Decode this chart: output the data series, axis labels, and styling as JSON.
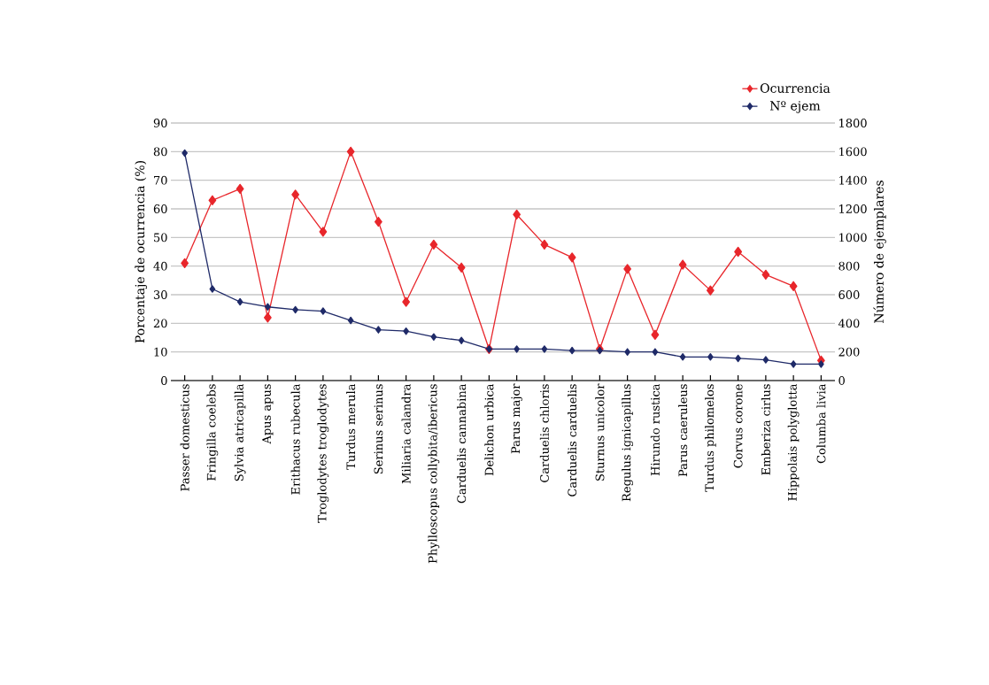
{
  "chart_data": {
    "type": "line",
    "ylabel": "Porcentaje de ocurrencia (%)",
    "y2label": "Número de ejemplares",
    "categories": [
      "Passer domesticus",
      "Fringilla coelebs",
      "Sylvia atricapilla",
      "Apus apus",
      "Erithacus rubecula",
      "Troglodytes troglodytes",
      "Turdus merula",
      "Serinus serinus",
      "Miliaria calandra",
      "Phylloscopus collybita/ibericus",
      "Carduelis cannabina",
      "Delichon urbica",
      "Parus major",
      "Carduelis chloris",
      "Carduelis carduelis",
      "Sturnus unicolor",
      "Regulus ignicapillus",
      "Hirundo rustica",
      "Parus caeruleus",
      "Turdus philomelos",
      "Corvus corone",
      "Emberiza cirlus",
      "Hippolais polyglotta",
      "Columba livia"
    ],
    "series": [
      {
        "name": "Ocurrencia",
        "color": "#e8262b",
        "values": [
          41,
          63,
          67,
          22,
          65,
          52,
          80,
          55.5,
          27.5,
          47.5,
          39.5,
          11,
          58,
          47.5,
          43,
          11,
          39,
          16,
          40.5,
          31.5,
          45,
          37,
          33,
          7
        ]
      },
      {
        "name": "Nº ejem",
        "color": "#1f2a68",
        "axis": "y2",
        "values": [
          1590,
          640,
          550,
          515,
          495,
          485,
          420,
          355,
          345,
          305,
          280,
          220,
          220,
          220,
          210,
          210,
          200,
          200,
          165,
          165,
          155,
          145,
          115,
          115
        ]
      }
    ],
    "ylim": [
      0,
      90
    ],
    "yticks": [
      0,
      10,
      20,
      30,
      40,
      50,
      60,
      70,
      80,
      90
    ],
    "y2lim": [
      0,
      1800
    ],
    "y2ticks": [
      0,
      200,
      400,
      600,
      800,
      1000,
      1200,
      1400,
      1600,
      1800
    ],
    "grid": "y",
    "legend": "top right",
    "marker": "diamond",
    "line_style": "solid"
  }
}
